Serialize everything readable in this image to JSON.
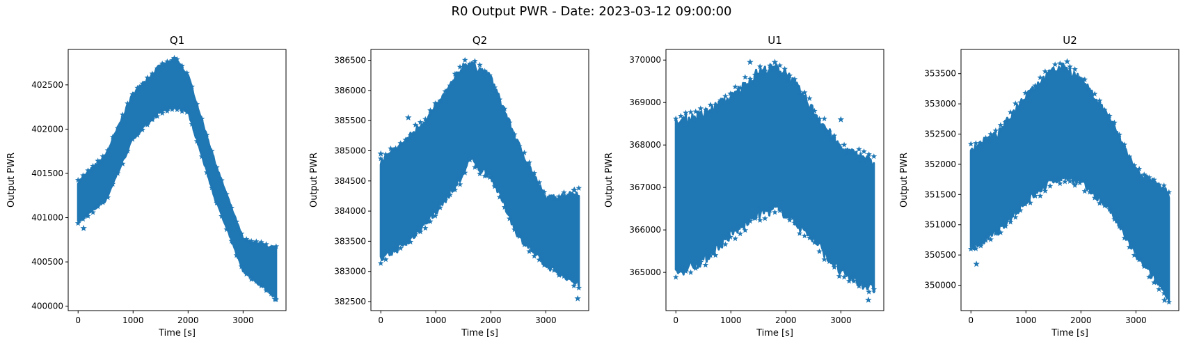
{
  "figure": {
    "suptitle": "R0 Output PWR - Date: 2023-03-12 09:00:00",
    "marker": "star",
    "color": "#1f77b4"
  },
  "chart_data": [
    {
      "type": "scatter",
      "title": "Q1",
      "xlabel": "Time [s]",
      "ylabel": "Output PWR",
      "xlim": [
        -180,
        3780
      ],
      "ylim": [
        399950,
        402900
      ],
      "xticks": [
        0,
        1000,
        2000,
        3000
      ],
      "yticks": [
        400000,
        400500,
        401000,
        401500,
        402000,
        402500
      ],
      "grid": false,
      "envelope": {
        "x": [
          0,
          500,
          1000,
          1500,
          1800,
          2000,
          2500,
          3000,
          3600
        ],
        "upper": [
          401400,
          401700,
          402400,
          402720,
          402770,
          402600,
          401600,
          400750,
          400650
        ],
        "lower": [
          400950,
          401200,
          401900,
          402200,
          402250,
          402200,
          401200,
          400400,
          400100
        ]
      },
      "outliers": [
        [
          1750,
          402800
        ],
        [
          3580,
          400080
        ],
        [
          100,
          400880
        ]
      ]
    },
    {
      "type": "scatter",
      "title": "Q2",
      "xlabel": "Time [s]",
      "ylabel": "Output PWR",
      "xlim": [
        -180,
        3780
      ],
      "ylim": [
        382350,
        386680
      ],
      "xticks": [
        0,
        1000,
        2000,
        3000
      ],
      "yticks": [
        382500,
        383000,
        383500,
        384000,
        384500,
        385000,
        385500,
        386000,
        386500
      ],
      "grid": false,
      "envelope": {
        "x": [
          0,
          500,
          1000,
          1500,
          1600,
          1800,
          2000,
          2500,
          3000,
          3600
        ],
        "upper": [
          384800,
          385200,
          385700,
          386400,
          386450,
          386350,
          386200,
          385100,
          384200,
          384300
        ],
        "lower": [
          383200,
          383500,
          384000,
          384600,
          384900,
          384700,
          384600,
          383600,
          383100,
          382800
        ]
      },
      "outliers": [
        [
          0,
          384950
        ],
        [
          500,
          385550
        ],
        [
          3580,
          382550
        ],
        [
          3520,
          384350
        ]
      ]
    },
    {
      "type": "scatter",
      "title": "U1",
      "xlabel": "Time [s]",
      "ylabel": "Output PWR",
      "xlim": [
        -180,
        3780
      ],
      "ylim": [
        364100,
        370250
      ],
      "xticks": [
        0,
        1000,
        2000,
        3000
      ],
      "yticks": [
        365000,
        366000,
        367000,
        368000,
        369000,
        370000
      ],
      "grid": false,
      "envelope": {
        "x": [
          0,
          500,
          1000,
          1500,
          1800,
          2000,
          2500,
          3000,
          3600
        ],
        "upper": [
          368500,
          368700,
          369100,
          369700,
          369800,
          369700,
          368800,
          367900,
          367600
        ],
        "lower": [
          365000,
          365300,
          365900,
          366400,
          366500,
          366400,
          365800,
          365000,
          364600
        ]
      },
      "outliers": [
        [
          1350,
          369950
        ],
        [
          1800,
          369950
        ],
        [
          3500,
          364350
        ],
        [
          3000,
          368600
        ]
      ]
    },
    {
      "type": "scatter",
      "title": "U2",
      "xlabel": "Time [s]",
      "ylabel": "Output PWR",
      "xlim": [
        -180,
        3780
      ],
      "ylim": [
        349580,
        353900
      ],
      "xticks": [
        0,
        1000,
        2000,
        3000
      ],
      "yticks": [
        350000,
        350500,
        351000,
        351500,
        352000,
        352500,
        353000,
        353500
      ],
      "grid": false,
      "envelope": {
        "x": [
          0,
          500,
          1000,
          1500,
          1700,
          2000,
          2500,
          3000,
          3600
        ],
        "upper": [
          352250,
          352500,
          353150,
          353550,
          353600,
          353400,
          352800,
          351900,
          351500
        ],
        "lower": [
          350600,
          350900,
          351400,
          351750,
          351800,
          351700,
          351300,
          350500,
          349800
        ]
      },
      "outliers": [
        [
          1750,
          353700
        ],
        [
          3520,
          349750
        ],
        [
          100,
          350350
        ]
      ]
    }
  ]
}
